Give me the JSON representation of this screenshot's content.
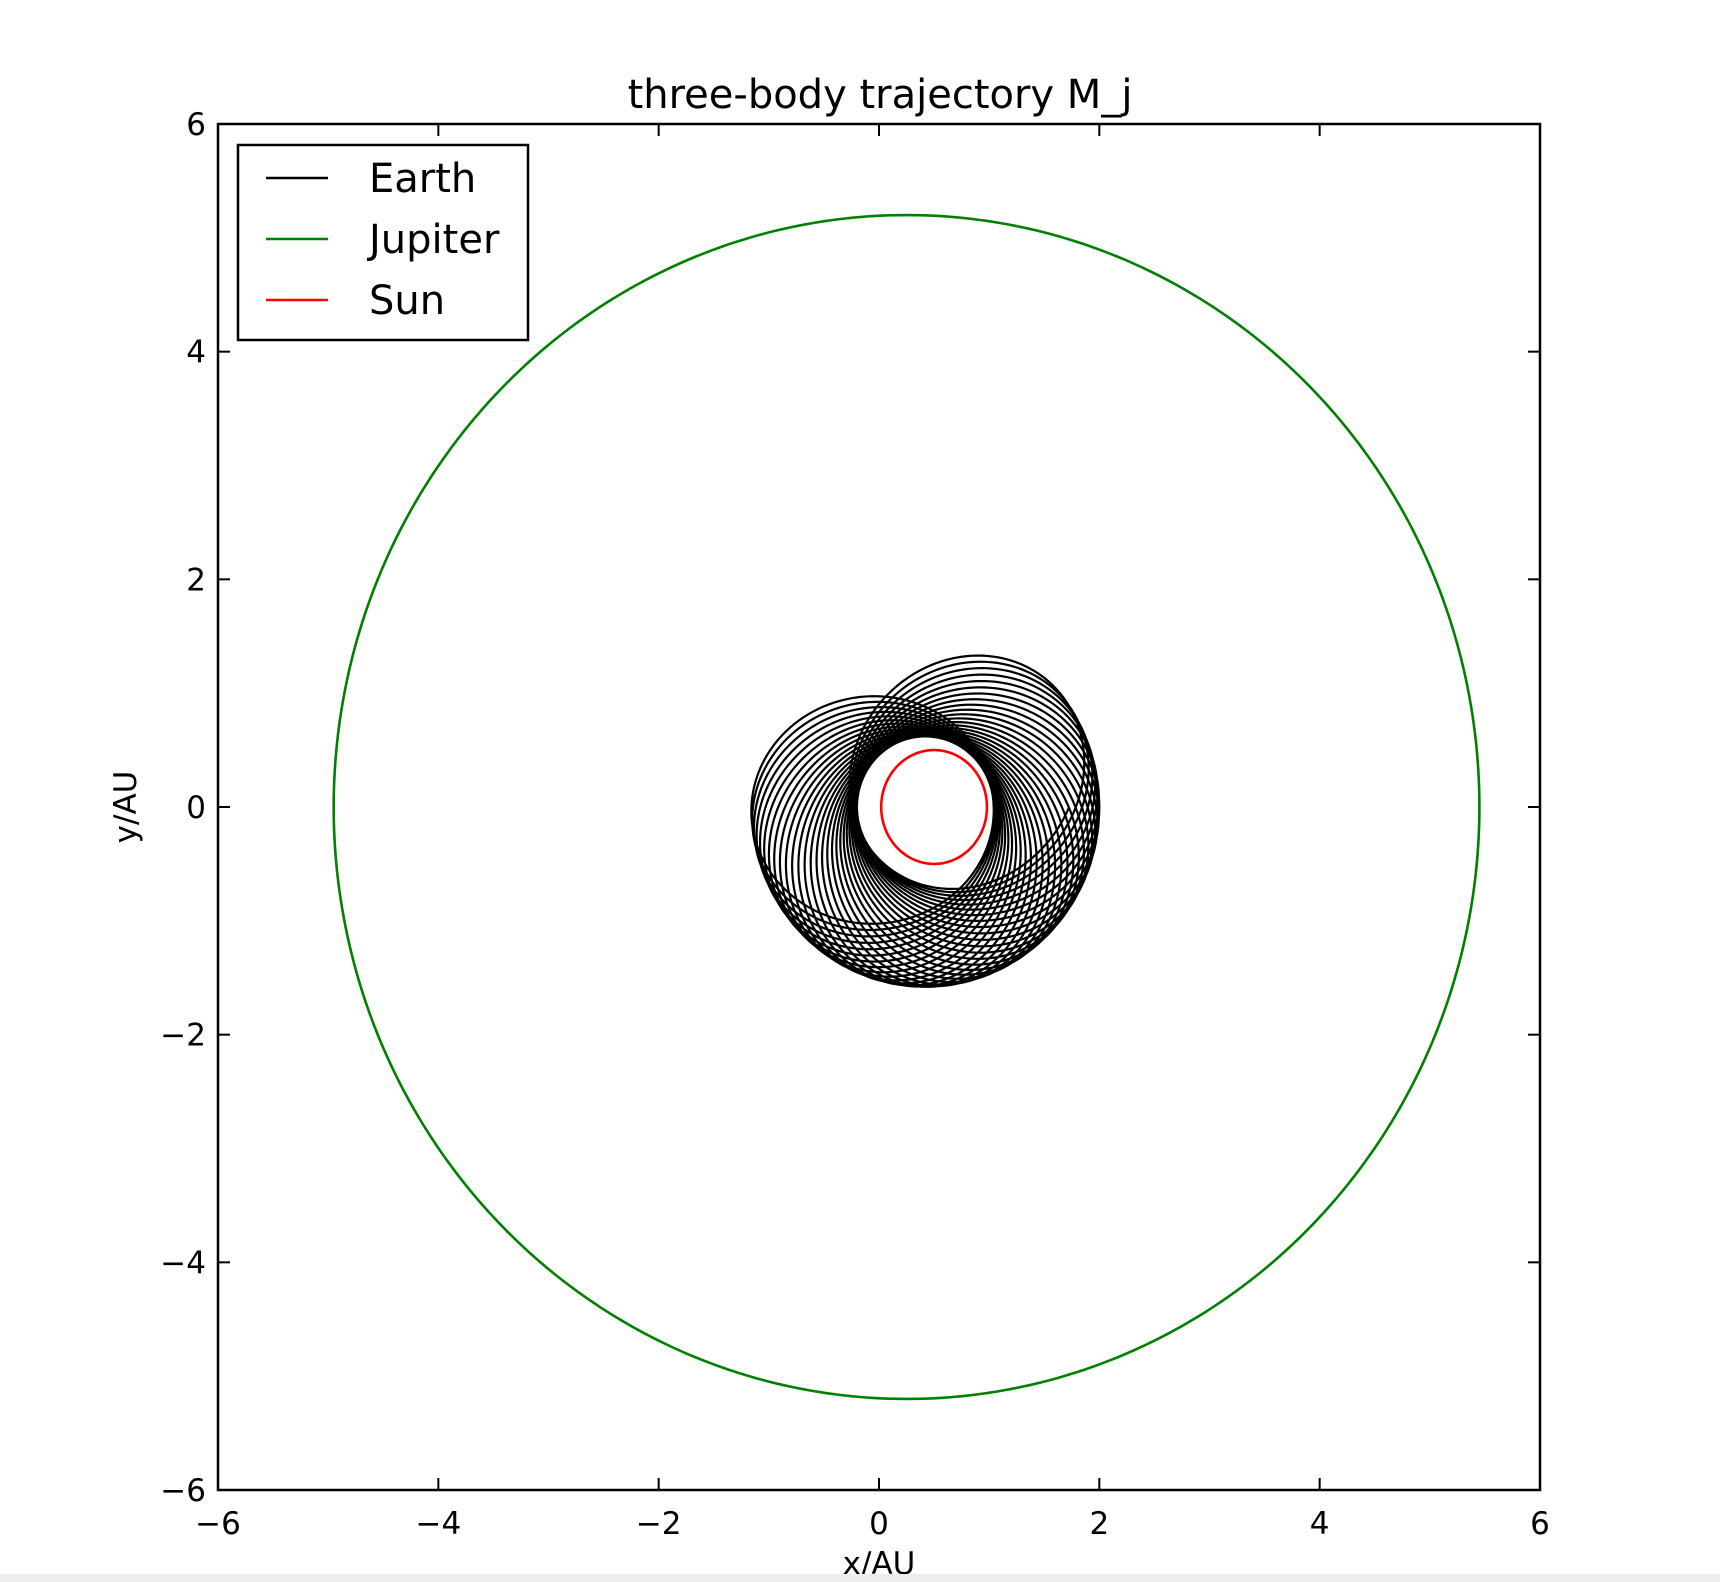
{
  "chart_data": {
    "type": "line",
    "title": "three-body trajectory M_j",
    "xlabel": "x/AU",
    "ylabel": "y/AU",
    "xlim": [
      -6,
      6
    ],
    "ylim": [
      -6,
      6
    ],
    "xticks": [
      -6,
      -4,
      -2,
      0,
      2,
      4,
      6
    ],
    "yticks": [
      -6,
      -4,
      -2,
      0,
      2,
      4,
      6
    ],
    "xtick_labels": [
      "−6",
      "−4",
      "−2",
      "0",
      "2",
      "4",
      "6"
    ],
    "ytick_labels": [
      "−6",
      "−4",
      "−2",
      "0",
      "2",
      "4",
      "6"
    ],
    "grid": false,
    "legend_position": "upper left",
    "series": [
      {
        "name": "Earth",
        "color": "#000000",
        "shape": "precessing orbit (rosette)",
        "center": [
          0.42,
          0.0
        ],
        "outer_radius": 1.58,
        "inner_radius": 0.62,
        "loops": 36
      },
      {
        "name": "Jupiter",
        "color": "#008000",
        "shape": "ellipse",
        "center": [
          0.25,
          0.0
        ],
        "radius_x": 5.2,
        "radius_y": 5.2
      },
      {
        "name": "Sun",
        "color": "#ff0000",
        "shape": "ellipse",
        "center": [
          0.5,
          0.0
        ],
        "radius_x": 0.48,
        "radius_y": 0.5
      }
    ]
  }
}
